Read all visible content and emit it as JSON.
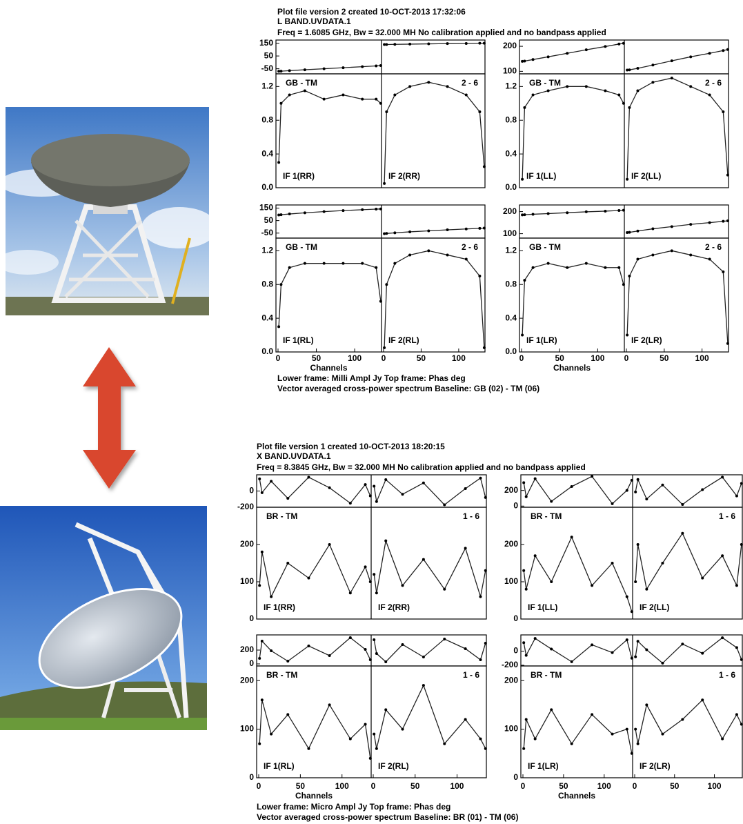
{
  "plots": [
    {
      "header": [
        "Plot file version 2  created 10-OCT-2013 17:32:06",
        "L BAND.UVDATA.1",
        "Freq = 1.6085 GHz, Bw = 32.000 MH   No calibration applied and no bandpass applied"
      ],
      "footer": [
        "Lower frame: Milli Ampl Jy  Top frame: Phas deg",
        "Vector averaged cross-power spectrum    Baseline: GB (02) - TM (06)"
      ],
      "xlabel": "Channels",
      "xlim": [
        0,
        135
      ],
      "xticks": [
        0,
        50,
        100
      ],
      "x": [
        1,
        4,
        15,
        35,
        60,
        85,
        110,
        128,
        134
      ],
      "rows": [
        [
          {
            "baseline": "GB - TM",
            "pair": "2 - 6",
            "phase_ylim": [
              -90,
              175
            ],
            "phase_yticks": [
              150,
              50,
              -50
            ],
            "amp_ylim": [
              0,
              1.35
            ],
            "amp_yticks": [
              {
                "value": 0,
                "label": "0.0"
              },
              0.4,
              0.8,
              1.2
            ],
            "ifs": [
              {
                "label": "IF 1(RR)",
                "phase": [
                  -70,
                  -69,
                  -65,
                  -58,
                  -50,
                  -42,
                  -34,
                  -28,
                  -25
                ],
                "amp": [
                  0.3,
                  1.0,
                  1.1,
                  1.15,
                  1.05,
                  1.1,
                  1.05,
                  1.05,
                  1.0
                ]
              },
              {
                "label": "IF 2(RR)",
                "phase": [
                  140,
                  140,
                  141,
                  143,
                  145,
                  147,
                  148,
                  150,
                  150
                ],
                "amp": [
                  0.05,
                  0.9,
                  1.1,
                  1.2,
                  1.25,
                  1.2,
                  1.1,
                  0.9,
                  0.25
                ]
              }
            ]
          },
          {
            "baseline": "GB - TM",
            "pair": "2 - 6",
            "phase_ylim": [
              90,
              225
            ],
            "phase_yticks": [
              200,
              100
            ],
            "amp_ylim": [
              0,
              1.35
            ],
            "amp_yticks": [
              {
                "value": 0,
                "label": "0.0"
              },
              0.4,
              0.8,
              1.2
            ],
            "ifs": [
              {
                "label": "IF 1(LL)",
                "phase": [
                  140,
                  141,
                  147,
                  158,
                  172,
                  186,
                  199,
                  209,
                  212
                ],
                "amp": [
                  0.1,
                  0.95,
                  1.1,
                  1.15,
                  1.2,
                  1.2,
                  1.15,
                  1.1,
                  1.0
                ]
              },
              {
                "label": "IF 2(LL)",
                "phase": [
                  105,
                  106,
                  112,
                  125,
                  142,
                  158,
                  172,
                  183,
                  187
                ],
                "amp": [
                  0.1,
                  0.95,
                  1.15,
                  1.25,
                  1.3,
                  1.2,
                  1.1,
                  0.9,
                  0.15
                ]
              }
            ]
          }
        ],
        [
          {
            "baseline": "GB - TM",
            "pair": "2 - 6",
            "phase_ylim": [
              -90,
              175
            ],
            "phase_yticks": [
              150,
              50,
              -50
            ],
            "amp_ylim": [
              0,
              1.35
            ],
            "amp_yticks": [
              {
                "value": 0,
                "label": "0.0"
              },
              0.4,
              0.8,
              1.2
            ],
            "ifs": [
              {
                "label": "IF 1(RL)",
                "phase": [
                  95,
                  97,
                  103,
                  112,
                  122,
                  130,
                  137,
                  142,
                  143
                ],
                "amp": [
                  0.3,
                  0.8,
                  1.0,
                  1.05,
                  1.05,
                  1.05,
                  1.05,
                  1.0,
                  0.6
                ]
              },
              {
                "label": "IF 2(RL)",
                "phase": [
                  -55,
                  -53,
                  -48,
                  -40,
                  -32,
                  -24,
                  -17,
                  -12,
                  -10
                ],
                "amp": [
                  0.05,
                  0.8,
                  1.05,
                  1.15,
                  1.2,
                  1.15,
                  1.1,
                  0.9,
                  0.05
                ]
              }
            ]
          },
          {
            "baseline": "GB - TM",
            "pair": "2 - 6",
            "phase_ylim": [
              80,
              230
            ],
            "phase_yticks": [
              200,
              100
            ],
            "amp_ylim": [
              0,
              1.35
            ],
            "amp_yticks": [
              {
                "value": 0,
                "label": "0.0"
              },
              0.4,
              0.8,
              1.2
            ],
            "ifs": [
              {
                "label": "IF 1(LR)",
                "phase": [
                  185,
                  186,
                  188,
                  191,
                  195,
                  199,
                  202,
                  205,
                  206
                ],
                "amp": [
                  0.2,
                  0.85,
                  1.0,
                  1.05,
                  1.0,
                  1.05,
                  1.0,
                  1.0,
                  0.8
                ]
              },
              {
                "label": "IF 2(LR)",
                "phase": [
                  105,
                  106,
                  112,
                  122,
                  132,
                  142,
                  150,
                  156,
                  158
                ],
                "amp": [
                  0.2,
                  0.9,
                  1.1,
                  1.15,
                  1.2,
                  1.15,
                  1.1,
                  0.95,
                  0.1
                ]
              }
            ]
          }
        ]
      ]
    },
    {
      "header": [
        "Plot file version 1  created 10-OCT-2013 18:20:15",
        "X BAND.UVDATA.1",
        "Freq = 8.3845 GHz, Bw = 32.000 MH   No calibration applied and no bandpass applied"
      ],
      "footer": [
        "Lower frame: Micro Ampl Jy   Top frame: Phas deg",
        "Vector averaged cross-power spectrum    Baseline: BR (01) - TM (06)"
      ],
      "xlabel": "Channels",
      "xlim": [
        0,
        135
      ],
      "xticks": [
        0,
        50,
        100
      ],
      "x": [
        1,
        4,
        15,
        35,
        60,
        85,
        110,
        128,
        134
      ],
      "rows": [
        [
          {
            "baseline": "BR - TM",
            "pair": "1 - 6",
            "phase_ylim": [
              -200,
              200
            ],
            "phase_yticks": [
              0,
              -200
            ],
            "amp_ylim": [
              0,
              300
            ],
            "amp_yticks": [
              0,
              100,
              200
            ],
            "ifs": [
              {
                "label": "IF 1(RR)",
                "phase": [
                  150,
                  -20,
                  120,
                  -90,
                  170,
                  40,
                  -150,
                  80,
                  -60
                ],
                "amp": [
                  90,
                  180,
                  60,
                  150,
                  110,
                  200,
                  70,
                  140,
                  100
                ]
              },
              {
                "label": "IF 2(RR)",
                "phase": [
                  60,
                  -130,
                  140,
                  -40,
                  100,
                  -170,
                  30,
                  160,
                  -80
                ],
                "amp": [
                  120,
                  70,
                  210,
                  90,
                  160,
                  80,
                  190,
                  60,
                  130
                ]
              }
            ]
          },
          {
            "baseline": "BR - TM",
            "pair": "1 - 6",
            "phase_ylim": [
              -15,
              400
            ],
            "phase_yticks": [
              200,
              0
            ],
            "amp_ylim": [
              0,
              300
            ],
            "amp_yticks": [
              0,
              100,
              200
            ],
            "ifs": [
              {
                "label": "IF 1(LL)",
                "phase": [
                  300,
                  120,
                  350,
                  60,
                  250,
                  380,
                  30,
                  200,
                  330
                ],
                "amp": [
                  130,
                  80,
                  170,
                  100,
                  220,
                  90,
                  150,
                  60,
                  20
                ]
              },
              {
                "label": "IF 2(LL)",
                "phase": [
                  180,
                  340,
                  90,
                  270,
                  20,
                  210,
                  370,
                  130,
                  290
                ],
                "amp": [
                  100,
                  200,
                  80,
                  150,
                  230,
                  110,
                  170,
                  90,
                  200
                ]
              }
            ]
          }
        ],
        [
          {
            "baseline": "BR - TM",
            "pair": "1 - 6",
            "phase_ylim": [
              -30,
              420
            ],
            "phase_yticks": [
              200,
              0
            ],
            "amp_ylim": [
              0,
              230
            ],
            "amp_yticks": [
              0,
              100,
              200
            ],
            "ifs": [
              {
                "label": "IF 1(RL)",
                "phase": [
                  80,
                  330,
                  190,
                  40,
                  260,
                  120,
                  380,
                  210,
                  60
                ],
                "amp": [
                  70,
                  160,
                  90,
                  130,
                  60,
                  150,
                  80,
                  110,
                  40
                ]
              },
              {
                "label": "IF 2(RL)",
                "phase": [
                  350,
                  150,
                  30,
                  280,
                  100,
                  360,
                  220,
                  60,
                  300
                ],
                "amp": [
                  90,
                  60,
                  140,
                  100,
                  190,
                  70,
                  120,
                  80,
                  60
                ]
              }
            ]
          },
          {
            "baseline": "BR - TM",
            "pair": "1 - 6",
            "phase_ylim": [
              -210,
              230
            ],
            "phase_yticks": [
              0,
              -200
            ],
            "amp_ylim": [
              0,
              230
            ],
            "amp_yticks": [
              0,
              100,
              200
            ],
            "ifs": [
              {
                "label": "IF 1(LR)",
                "phase": [
                  120,
                  -60,
                  180,
                  30,
                  -150,
                  90,
                  -20,
                  160,
                  -100
                ],
                "amp": [
                  60,
                  120,
                  80,
                  140,
                  70,
                  130,
                  90,
                  100,
                  50
                ]
              },
              {
                "label": "IF 2(LR)",
                "phase": [
                  -80,
                  140,
                  20,
                  -170,
                  100,
                  -30,
                  190,
                  50,
                  -120
                ],
                "amp": [
                  100,
                  70,
                  150,
                  90,
                  120,
                  160,
                  80,
                  130,
                  110
                ]
              }
            ]
          }
        ]
      ]
    }
  ]
}
